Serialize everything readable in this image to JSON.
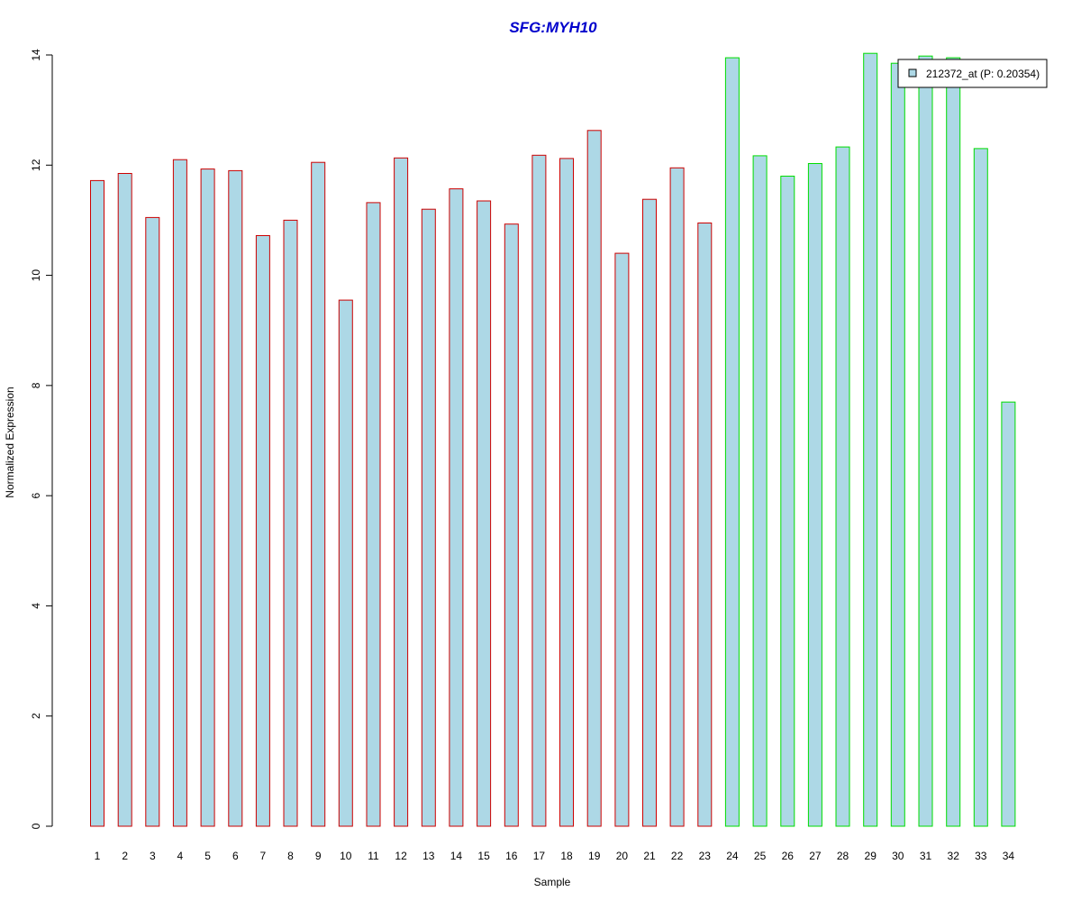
{
  "chart_data": {
    "type": "bar",
    "title": "SFG:MYH10",
    "xlabel": "Sample",
    "ylabel": "Normalized Expression",
    "categories": [
      "1",
      "2",
      "3",
      "4",
      "5",
      "6",
      "7",
      "8",
      "9",
      "10",
      "11",
      "12",
      "13",
      "14",
      "15",
      "16",
      "17",
      "18",
      "19",
      "20",
      "21",
      "22",
      "23",
      "24",
      "25",
      "26",
      "27",
      "28",
      "29",
      "30",
      "31",
      "32",
      "33",
      "34"
    ],
    "values": [
      11.72,
      11.85,
      11.05,
      12.1,
      11.93,
      11.9,
      10.72,
      11.0,
      12.05,
      9.55,
      11.32,
      12.13,
      11.2,
      11.57,
      11.35,
      10.93,
      12.18,
      12.12,
      12.63,
      10.4,
      11.38,
      11.95,
      10.95,
      13.95,
      12.17,
      11.8,
      12.03,
      12.33,
      14.03,
      13.85,
      13.98,
      13.95,
      12.3,
      7.7
    ],
    "group_border_colors": [
      "#cc0000",
      "#cc0000",
      "#cc0000",
      "#cc0000",
      "#cc0000",
      "#cc0000",
      "#cc0000",
      "#cc0000",
      "#cc0000",
      "#cc0000",
      "#cc0000",
      "#cc0000",
      "#cc0000",
      "#cc0000",
      "#cc0000",
      "#cc0000",
      "#cc0000",
      "#cc0000",
      "#cc0000",
      "#cc0000",
      "#cc0000",
      "#cc0000",
      "#cc0000",
      "#00dd00",
      "#00dd00",
      "#00dd00",
      "#00dd00",
      "#00dd00",
      "#00dd00",
      "#00dd00",
      "#00dd00",
      "#00dd00",
      "#00dd00",
      "#00dd00"
    ],
    "bar_fill": "#add8e6",
    "title_color": "#0000cc",
    "ylim": [
      0,
      14
    ],
    "yticks": [
      0,
      2,
      4,
      6,
      8,
      10,
      12,
      14
    ],
    "grid": false,
    "legend": {
      "placement": "top-right",
      "entries": [
        {
          "label": "212372_at (P: 0.20354)",
          "color": "#add8e6"
        }
      ]
    }
  }
}
